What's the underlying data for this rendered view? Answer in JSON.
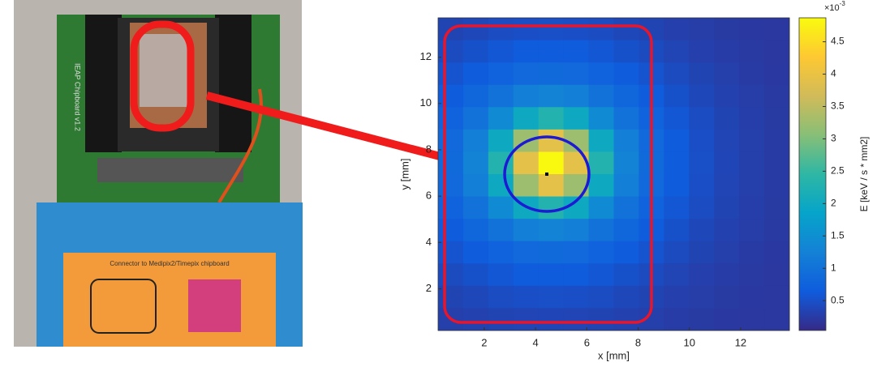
{
  "photo": {
    "board_label": "IEAP Chipboard v1.2",
    "connector_label": "Connector to Medipix2/Timepix chipboard"
  },
  "chart_data": {
    "type": "heatmap",
    "xlabel": "x [mm]",
    "ylabel": "y [mm]",
    "xlim": [
      0.2,
      13.9
    ],
    "ylim": [
      0.2,
      13.7
    ],
    "xticks": [
      2,
      4,
      6,
      8,
      10,
      12
    ],
    "yticks": [
      2,
      4,
      6,
      8,
      10,
      12
    ],
    "colorbar_label": "E [keV / s * mm2]",
    "colorbar_multiplier": {
      "base": "×10",
      "exponent": "-3"
    },
    "clim": [
      0.04,
      4.87
    ],
    "colorbar_ticks": [
      0.5,
      1,
      1.5,
      2,
      2.5,
      3,
      3.5,
      4,
      4.5
    ],
    "colormap": [
      "#352a87",
      "#0f5cdd",
      "#1481d6",
      "#06a4ca",
      "#2eb7a4",
      "#87bf77",
      "#d1bb59",
      "#fec832",
      "#f9fb0e"
    ],
    "z": [
      [
        0.35,
        0.4,
        0.45,
        0.48,
        0.49,
        0.48,
        0.45,
        0.4,
        0.35,
        0.3,
        0.27,
        0.24,
        0.22,
        0.21
      ],
      [
        0.44,
        0.51,
        0.58,
        0.64,
        0.65,
        0.64,
        0.58,
        0.51,
        0.44,
        0.36,
        0.3,
        0.26,
        0.23,
        0.21
      ],
      [
        0.54,
        0.65,
        0.76,
        0.85,
        0.88,
        0.85,
        0.76,
        0.65,
        0.54,
        0.44,
        0.35,
        0.29,
        0.25,
        0.22
      ],
      [
        0.65,
        0.82,
        1.01,
        1.21,
        1.3,
        1.21,
        1.01,
        0.82,
        0.65,
        0.51,
        0.4,
        0.32,
        0.27,
        0.23
      ],
      [
        0.76,
        1.01,
        1.42,
        1.99,
        2.3,
        1.99,
        1.42,
        1.01,
        0.76,
        0.58,
        0.45,
        0.35,
        0.28,
        0.24
      ],
      [
        0.85,
        1.21,
        1.99,
        3.23,
        3.92,
        3.23,
        1.99,
        1.21,
        0.85,
        0.64,
        0.48,
        0.36,
        0.29,
        0.25
      ],
      [
        0.88,
        1.3,
        2.3,
        3.92,
        4.85,
        3.92,
        2.3,
        1.3,
        0.88,
        0.65,
        0.49,
        0.37,
        0.29,
        0.25
      ],
      [
        0.85,
        1.21,
        1.99,
        3.23,
        3.92,
        3.23,
        1.99,
        1.21,
        0.85,
        0.64,
        0.48,
        0.36,
        0.29,
        0.25
      ],
      [
        0.76,
        1.01,
        1.42,
        1.99,
        2.3,
        1.99,
        1.42,
        1.01,
        0.76,
        0.58,
        0.45,
        0.35,
        0.28,
        0.24
      ],
      [
        0.65,
        0.82,
        1.01,
        1.21,
        1.3,
        1.21,
        1.01,
        0.82,
        0.65,
        0.51,
        0.4,
        0.32,
        0.27,
        0.23
      ],
      [
        0.54,
        0.65,
        0.76,
        0.85,
        0.88,
        0.85,
        0.76,
        0.65,
        0.54,
        0.44,
        0.35,
        0.29,
        0.25,
        0.22
      ],
      [
        0.44,
        0.51,
        0.58,
        0.64,
        0.65,
        0.64,
        0.58,
        0.51,
        0.44,
        0.36,
        0.3,
        0.26,
        0.23,
        0.21
      ],
      [
        0.35,
        0.4,
        0.45,
        0.48,
        0.49,
        0.48,
        0.45,
        0.4,
        0.35,
        0.3,
        0.27,
        0.24,
        0.22,
        0.21
      ],
      [
        0.29,
        0.32,
        0.35,
        0.36,
        0.37,
        0.36,
        0.35,
        0.32,
        0.29,
        0.26,
        0.24,
        0.22,
        0.21,
        0.21
      ]
    ]
  }
}
